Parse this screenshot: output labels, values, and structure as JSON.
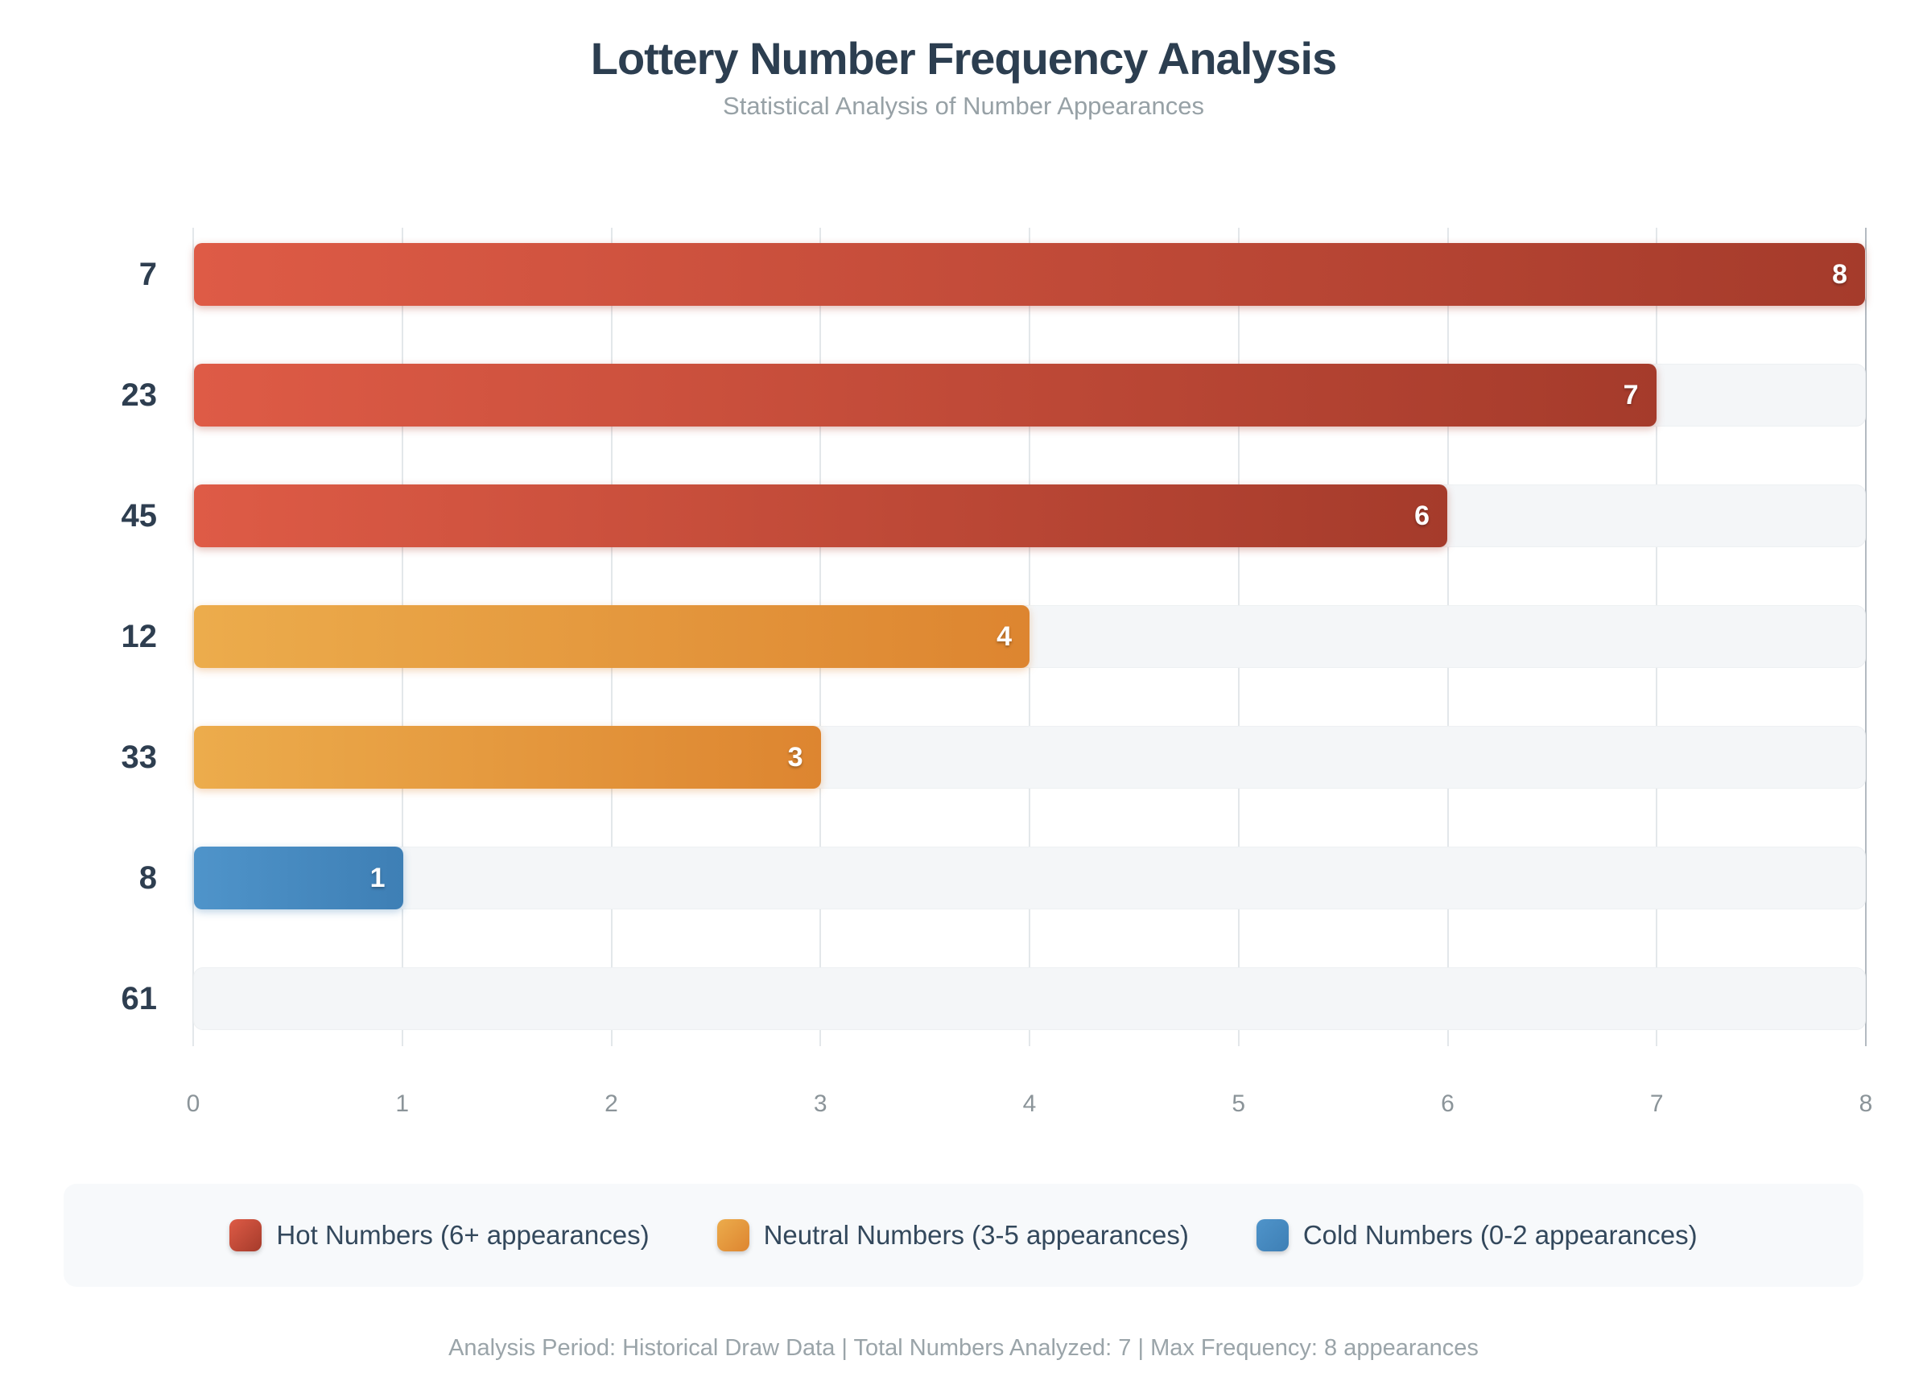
{
  "header": {
    "title": "Lottery Number Frequency Analysis",
    "subtitle": "Statistical Analysis of Number Appearances"
  },
  "chart_data": {
    "type": "bar",
    "orientation": "horizontal",
    "title": "Lottery Number Frequency Analysis",
    "subtitle": "Statistical Analysis of Number Appearances",
    "categories": [
      "7",
      "23",
      "45",
      "12",
      "33",
      "8",
      "61"
    ],
    "values": [
      8,
      7,
      6,
      4,
      3,
      1,
      0
    ],
    "bar_classes": [
      "hot",
      "hot",
      "hot",
      "neutral",
      "neutral",
      "cold",
      "cold"
    ],
    "xlabel": "",
    "ylabel": "",
    "xlim": [
      0,
      8
    ],
    "x_ticks": [
      "0",
      "1",
      "2",
      "3",
      "4",
      "5",
      "6",
      "7",
      "8"
    ],
    "grid": true,
    "legend_position": "bottom",
    "colors": {
      "hot": {
        "start": "#DE5B46",
        "end": "#A53B2B"
      },
      "neutral": {
        "start": "#ECAC4C",
        "end": "#DD8530"
      },
      "cold": {
        "start": "#4F94CA",
        "end": "#3E7FB5"
      }
    }
  },
  "legend": {
    "items": [
      {
        "label": "Hot Numbers (6+ appearances)",
        "class": "hot"
      },
      {
        "label": "Neutral Numbers (3-5 appearances)",
        "class": "neutral"
      },
      {
        "label": "Cold Numbers (0-2 appearances)",
        "class": "cold"
      }
    ]
  },
  "footer": {
    "text": "Analysis Period: Historical Draw Data | Total Numbers Analyzed: 7 | Max Frequency: 8 appearances"
  }
}
